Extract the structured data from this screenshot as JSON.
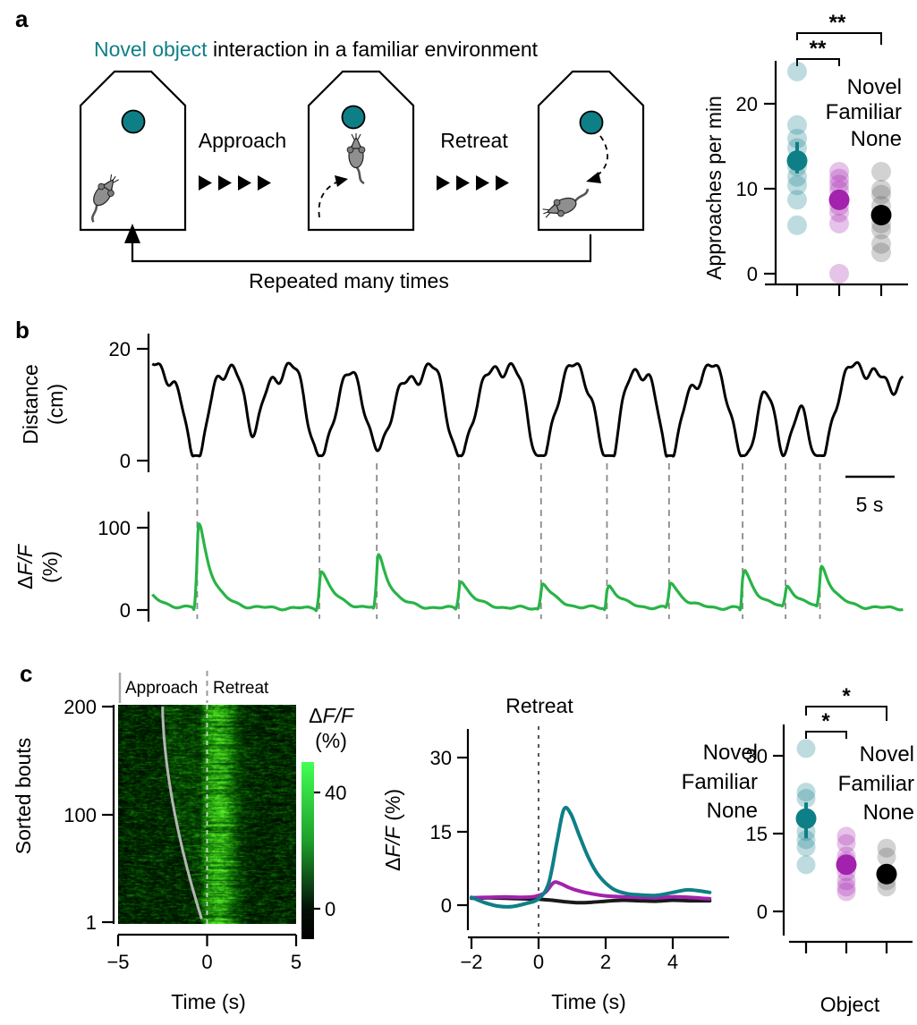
{
  "colors": {
    "novel": "#0e7f87",
    "familiar": "#a222ad",
    "none": "#000000",
    "gray_dot": "#5a5a5a",
    "green_trace": "#28b447",
    "black_trace": "#000000",
    "dash_gray": "#8a8a8a",
    "sorted_curve_gray": "#b5b5b5",
    "heat_bright_green": "#42ff52",
    "mouse_gray": "#8f8f8f"
  },
  "panel_a": {
    "label": "a",
    "title_novel": "Novel object",
    "title_rest": " interaction in a familiar environment",
    "approach_label": "Approach",
    "retreat_label": "Retreat",
    "repeat_label": "Repeated many times",
    "scatter": {
      "ylabel": "Approaches per min",
      "yticks": [
        "20",
        "10",
        "0"
      ],
      "legend": [
        "Novel",
        "Familiar",
        "None"
      ],
      "sig_outer": "**",
      "sig_inner": "**"
    }
  },
  "panel_b": {
    "label": "b",
    "distance_ylabel_line1": "Distance",
    "distance_ylabel_line2": "(cm)",
    "distance_yticks": [
      "20",
      "0"
    ],
    "dff_delta": "Δ",
    "dff_ff": "F/F",
    "dff_pct": "(%)",
    "dff_yticks": [
      "100",
      "0"
    ],
    "scalebar_label": "5 s"
  },
  "panel_c": {
    "label": "c",
    "heatmap": {
      "ylabel": "Sorted bouts",
      "yticks": [
        "200",
        "100",
        "1"
      ],
      "xticks": [
        "−5",
        "0",
        "5"
      ],
      "xlabel": "Time (s)",
      "approach_label": "Approach",
      "retreat_label": "Retreat",
      "cbar_delta": "Δ",
      "cbar_ff": "F/F",
      "cbar_pct": "(%)",
      "cbar_ticks": [
        "40",
        "0"
      ]
    },
    "middle": {
      "title": "Retreat",
      "ylabel_delta": "Δ",
      "ylabel_ff": "F/F",
      "ylabel_pct": " (%)",
      "yticks": [
        "30",
        "15",
        "0"
      ],
      "xticks": [
        "−2",
        "0",
        "2",
        "4"
      ],
      "xlabel": "Time (s)",
      "legend": [
        "Novel",
        "Familiar",
        "None"
      ]
    },
    "right": {
      "yticks": [
        "30",
        "15",
        "0"
      ],
      "xlabel": "Object",
      "legend": [
        "Novel",
        "Familiar",
        "None"
      ],
      "sig_outer": "*",
      "sig_inner": "*"
    }
  },
  "chart_data": [
    {
      "id": "approaches_per_min",
      "type": "scatter",
      "title": "Novel object interaction in a familiar environment",
      "ylabel": "Approaches per min",
      "ylim": [
        0,
        25
      ],
      "yticks": [
        0,
        10,
        20
      ],
      "groups": [
        {
          "name": "Novel",
          "values": [
            23.8,
            17.5,
            15.9,
            14.8,
            12.6,
            11.4,
            10.4,
            8.7,
            5.7
          ],
          "mean": 13.3,
          "err": [
            11.8,
            15.5
          ]
        },
        {
          "name": "Familiar",
          "values": [
            12.0,
            11.2,
            10.5,
            9.8,
            8.0,
            7.2,
            5.9,
            0.0
          ],
          "mean": 8.7,
          "err": [
            7.9,
            9.5
          ]
        },
        {
          "name": "None",
          "values": [
            12.0,
            9.9,
            9.3,
            8.0,
            5.9,
            5.2,
            3.5,
            2.5
          ],
          "mean": 6.9,
          "err": [
            6.3,
            7.6
          ]
        }
      ],
      "significance": [
        {
          "pair": [
            "Novel",
            "Familiar"
          ],
          "stars": "**"
        },
        {
          "pair": [
            "Novel",
            "None"
          ],
          "stars": "**"
        }
      ]
    },
    {
      "id": "behavior_traces",
      "type": "line",
      "duration_s": 79,
      "scalebar_s": 5,
      "distance": {
        "ylabel": "Distance (cm)",
        "yticks": [
          0,
          20
        ],
        "dip_times_s": [
          5.1,
          17.9,
          23.9,
          32.5,
          41.1,
          48.0,
          54.5,
          62.2,
          66.7,
          70.3
        ],
        "dip_depth_cm": 14.6,
        "minor_dip": {
          "t": 11.0,
          "depth": 8
        }
      },
      "dff": {
        "ylabel": "ΔF/F (%)",
        "yticks": [
          0,
          100
        ],
        "peak_pct": [
          100,
          45,
          62,
          33,
          30,
          27,
          30,
          45,
          25,
          48
        ]
      }
    },
    {
      "id": "sorted_bouts_heatmap",
      "type": "heatmap",
      "rows": 200,
      "t_range_s": [
        -5,
        5
      ],
      "yticks": [
        200,
        100,
        1
      ],
      "xticks": [
        -5,
        0,
        5
      ],
      "onset_curve_t_range": [
        -2.5,
        -0.3
      ],
      "colorbar": {
        "label": "ΔF/F (%)",
        "ticks": [
          40,
          0
        ],
        "range": [
          -10,
          50
        ]
      }
    },
    {
      "id": "retreat_aligned_dff",
      "type": "line",
      "title": "Retreat",
      "ylabel": "ΔF/F (%)",
      "yticks": [
        0,
        15,
        30
      ],
      "xticks": [
        -2,
        0,
        2,
        4
      ],
      "series": [
        {
          "name": "Novel",
          "points": [
            [
              -2,
              1.6
            ],
            [
              -1.6,
              0.5
            ],
            [
              -1.2,
              -0.2
            ],
            [
              -0.8,
              -0.3
            ],
            [
              -0.4,
              0.3
            ],
            [
              0,
              1.3
            ],
            [
              0.3,
              4.5
            ],
            [
              0.55,
              13
            ],
            [
              0.75,
              19.5
            ],
            [
              0.95,
              18.8
            ],
            [
              1.2,
              14.5
            ],
            [
              1.5,
              9.5
            ],
            [
              1.8,
              6
            ],
            [
              2.2,
              3.4
            ],
            [
              2.6,
              2.4
            ],
            [
              3,
              2.1
            ],
            [
              3.5,
              2.0
            ],
            [
              4,
              2.6
            ],
            [
              4.4,
              3.1
            ],
            [
              4.7,
              3.0
            ],
            [
              5.1,
              2.6
            ]
          ]
        },
        {
          "name": "Familiar",
          "points": [
            [
              -2,
              1.5
            ],
            [
              -1.5,
              1.6
            ],
            [
              -1,
              1.7
            ],
            [
              -0.5,
              1.6
            ],
            [
              -0.1,
              1.8
            ],
            [
              0.2,
              2.6
            ],
            [
              0.45,
              4.6
            ],
            [
              0.65,
              4.4
            ],
            [
              0.9,
              3.6
            ],
            [
              1.2,
              2.9
            ],
            [
              1.6,
              2.3
            ],
            [
              2,
              1.9
            ],
            [
              2.5,
              1.7
            ],
            [
              3,
              1.6
            ],
            [
              3.5,
              1.5
            ],
            [
              4,
              1.7
            ],
            [
              4.5,
              1.6
            ],
            [
              5.1,
              1.3
            ]
          ]
        },
        {
          "name": "None",
          "points": [
            [
              -2,
              1.4
            ],
            [
              -1.5,
              1.5
            ],
            [
              -1,
              1.4
            ],
            [
              -0.5,
              1.3
            ],
            [
              0,
              1.2
            ],
            [
              0.4,
              1.0
            ],
            [
              0.8,
              0.7
            ],
            [
              1.2,
              0.5
            ],
            [
              1.6,
              0.6
            ],
            [
              2,
              0.8
            ],
            [
              2.5,
              1.0
            ],
            [
              3,
              0.9
            ],
            [
              3.5,
              0.8
            ],
            [
              4,
              1.0
            ],
            [
              4.5,
              0.9
            ],
            [
              5.1,
              0.9
            ]
          ]
        }
      ]
    },
    {
      "id": "retreat_response_by_object",
      "type": "scatter",
      "xlabel": "Object",
      "yticks": [
        0,
        15,
        30
      ],
      "groups": [
        {
          "name": "Novel",
          "values": [
            31.4,
            23.0,
            21.8,
            15.4,
            13.8,
            12.4,
            9.0
          ],
          "mean": 17.9,
          "err": [
            14.1,
            21.0
          ]
        },
        {
          "name": "Familiar",
          "values": [
            14.5,
            13.1,
            10.7,
            9.7,
            7.6,
            5.9,
            4.7,
            3.8
          ],
          "mean": 9.0,
          "err": [
            7.8,
            10.2
          ]
        },
        {
          "name": "None",
          "values": [
            12.2,
            10.5,
            7.0,
            5.9,
            4.7
          ],
          "mean": 7.2,
          "err": [
            6.4,
            8.0
          ]
        }
      ],
      "significance": [
        {
          "pair": [
            "Novel",
            "Familiar"
          ],
          "stars": "*"
        },
        {
          "pair": [
            "Novel",
            "None"
          ],
          "stars": "*"
        }
      ]
    }
  ]
}
